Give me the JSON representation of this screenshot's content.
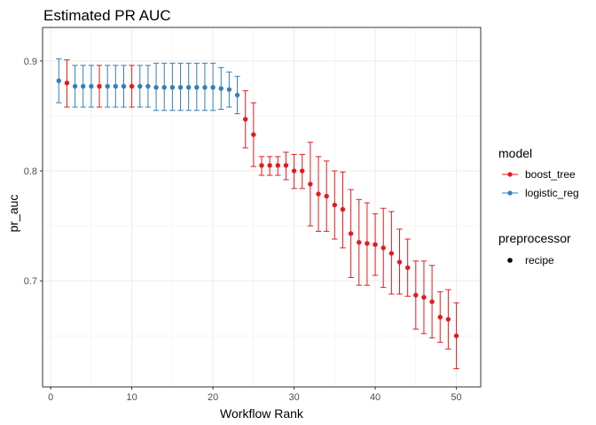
{
  "chart_data": {
    "type": "scatter",
    "title": "Estimated PR AUC",
    "xlabel": "Workflow Rank",
    "ylabel": "pr_auc",
    "xlim": [
      -1,
      53
    ],
    "ylim": [
      0.6035,
      0.9305
    ],
    "xticks": [
      0,
      10,
      20,
      30,
      40,
      50
    ],
    "xtick_labels": [
      "0",
      "10",
      "20",
      "30",
      "40",
      "50"
    ],
    "yticks": [
      0.7,
      0.8,
      0.9
    ],
    "ytick_labels": [
      "0.7",
      "0.8",
      "0.9"
    ],
    "grid": true,
    "legend_position": "right",
    "legend": {
      "model_title": "model",
      "entries": [
        {
          "label": "boost_tree",
          "color": "#e41a1c"
        },
        {
          "label": "logistic_reg",
          "color": "#377eb8"
        }
      ],
      "preprocessor_title": "preprocessor",
      "preprocessor_entries": [
        {
          "label": "recipe",
          "color": "#000000"
        }
      ]
    },
    "series": [
      {
        "name": "boost_tree",
        "color": "#e41a1c",
        "points": [
          {
            "x": 2,
            "y": 0.88,
            "lower": 0.858,
            "upper": 0.901
          },
          {
            "x": 6,
            "y": 0.877,
            "lower": 0.858,
            "upper": 0.896
          },
          {
            "x": 10,
            "y": 0.877,
            "lower": 0.858,
            "upper": 0.896
          },
          {
            "x": 24,
            "y": 0.847,
            "lower": 0.821,
            "upper": 0.873
          },
          {
            "x": 25,
            "y": 0.833,
            "lower": 0.804,
            "upper": 0.862
          },
          {
            "x": 26,
            "y": 0.805,
            "lower": 0.796,
            "upper": 0.813
          },
          {
            "x": 27,
            "y": 0.805,
            "lower": 0.796,
            "upper": 0.813
          },
          {
            "x": 28,
            "y": 0.805,
            "lower": 0.796,
            "upper": 0.813
          },
          {
            "x": 29,
            "y": 0.805,
            "lower": 0.792,
            "upper": 0.817
          },
          {
            "x": 30,
            "y": 0.8,
            "lower": 0.784,
            "upper": 0.815
          },
          {
            "x": 31,
            "y": 0.8,
            "lower": 0.784,
            "upper": 0.815
          },
          {
            "x": 32,
            "y": 0.788,
            "lower": 0.75,
            "upper": 0.826
          },
          {
            "x": 33,
            "y": 0.779,
            "lower": 0.745,
            "upper": 0.813
          },
          {
            "x": 34,
            "y": 0.777,
            "lower": 0.745,
            "upper": 0.809
          },
          {
            "x": 35,
            "y": 0.769,
            "lower": 0.738,
            "upper": 0.8
          },
          {
            "x": 36,
            "y": 0.765,
            "lower": 0.73,
            "upper": 0.799
          },
          {
            "x": 37,
            "y": 0.743,
            "lower": 0.703,
            "upper": 0.783
          },
          {
            "x": 38,
            "y": 0.735,
            "lower": 0.696,
            "upper": 0.774
          },
          {
            "x": 39,
            "y": 0.734,
            "lower": 0.696,
            "upper": 0.771
          },
          {
            "x": 40,
            "y": 0.733,
            "lower": 0.705,
            "upper": 0.761
          },
          {
            "x": 41,
            "y": 0.73,
            "lower": 0.694,
            "upper": 0.766
          },
          {
            "x": 42,
            "y": 0.725,
            "lower": 0.688,
            "upper": 0.763
          },
          {
            "x": 43,
            "y": 0.717,
            "lower": 0.688,
            "upper": 0.747
          },
          {
            "x": 44,
            "y": 0.712,
            "lower": 0.686,
            "upper": 0.738
          },
          {
            "x": 45,
            "y": 0.687,
            "lower": 0.656,
            "upper": 0.718
          },
          {
            "x": 46,
            "y": 0.685,
            "lower": 0.652,
            "upper": 0.718
          },
          {
            "x": 47,
            "y": 0.681,
            "lower": 0.648,
            "upper": 0.714
          },
          {
            "x": 48,
            "y": 0.667,
            "lower": 0.644,
            "upper": 0.69
          },
          {
            "x": 49,
            "y": 0.665,
            "lower": 0.638,
            "upper": 0.692
          },
          {
            "x": 50,
            "y": 0.65,
            "lower": 0.62,
            "upper": 0.68
          }
        ]
      },
      {
        "name": "logistic_reg",
        "color": "#377eb8",
        "points": [
          {
            "x": 1,
            "y": 0.882,
            "lower": 0.862,
            "upper": 0.902
          },
          {
            "x": 3,
            "y": 0.877,
            "lower": 0.858,
            "upper": 0.896
          },
          {
            "x": 4,
            "y": 0.877,
            "lower": 0.858,
            "upper": 0.896
          },
          {
            "x": 5,
            "y": 0.877,
            "lower": 0.858,
            "upper": 0.896
          },
          {
            "x": 7,
            "y": 0.877,
            "lower": 0.858,
            "upper": 0.896
          },
          {
            "x": 8,
            "y": 0.877,
            "lower": 0.858,
            "upper": 0.896
          },
          {
            "x": 9,
            "y": 0.877,
            "lower": 0.858,
            "upper": 0.896
          },
          {
            "x": 11,
            "y": 0.877,
            "lower": 0.858,
            "upper": 0.896
          },
          {
            "x": 12,
            "y": 0.877,
            "lower": 0.858,
            "upper": 0.896
          },
          {
            "x": 13,
            "y": 0.876,
            "lower": 0.855,
            "upper": 0.898
          },
          {
            "x": 14,
            "y": 0.876,
            "lower": 0.855,
            "upper": 0.898
          },
          {
            "x": 15,
            "y": 0.876,
            "lower": 0.855,
            "upper": 0.898
          },
          {
            "x": 16,
            "y": 0.876,
            "lower": 0.855,
            "upper": 0.898
          },
          {
            "x": 17,
            "y": 0.876,
            "lower": 0.855,
            "upper": 0.898
          },
          {
            "x": 18,
            "y": 0.876,
            "lower": 0.855,
            "upper": 0.898
          },
          {
            "x": 19,
            "y": 0.876,
            "lower": 0.855,
            "upper": 0.898
          },
          {
            "x": 20,
            "y": 0.876,
            "lower": 0.855,
            "upper": 0.898
          },
          {
            "x": 21,
            "y": 0.875,
            "lower": 0.856,
            "upper": 0.894
          },
          {
            "x": 22,
            "y": 0.874,
            "lower": 0.858,
            "upper": 0.89
          },
          {
            "x": 23,
            "y": 0.869,
            "lower": 0.852,
            "upper": 0.886
          }
        ]
      }
    ]
  }
}
